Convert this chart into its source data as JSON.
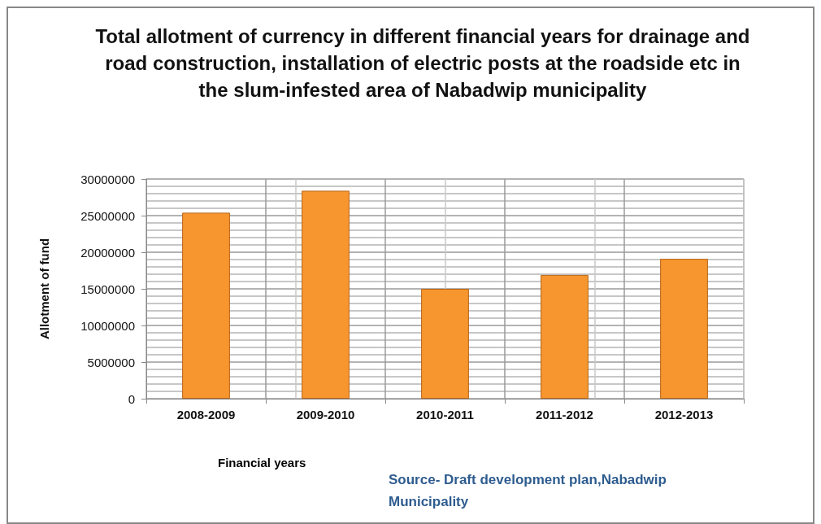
{
  "chart_data": {
    "type": "bar",
    "title": "Total allotment of currency in different financial years for drainage and road construction, installation of electric posts at the roadside etc in the slum-infested area of Nabadwip municipality",
    "xlabel": "Financial years",
    "ylabel": "Allotment of fund",
    "categories": [
      "2008-2009",
      "2009-2010",
      "2010-2011",
      "2011-2012",
      "2012-2013"
    ],
    "values": [
      25400000,
      28400000,
      15000000,
      16900000,
      19100000
    ],
    "color": "#f7962e",
    "ylim": [
      0,
      30000000
    ],
    "yticks": [
      0,
      5000000,
      10000000,
      15000000,
      20000000,
      25000000,
      30000000
    ],
    "grid": true,
    "annotations": [
      "Source- Draft development plan,Nabadwip Municipality"
    ]
  }
}
